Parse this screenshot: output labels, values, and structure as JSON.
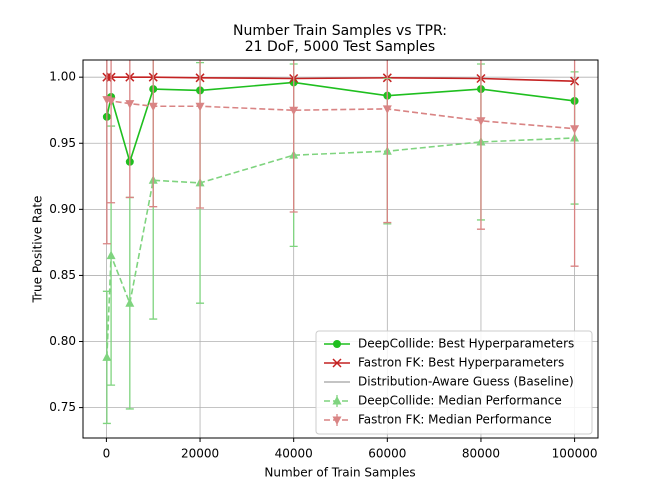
{
  "chart_data": {
    "type": "line",
    "title": [
      "Number Train Samples vs TPR:",
      "21 DoF, 5000 Test Samples"
    ],
    "xlabel": "Number of Train Samples",
    "ylabel": "True Positive Rate",
    "x": [
      100,
      1000,
      5000,
      10000,
      20000,
      40000,
      60000,
      80000,
      100000
    ],
    "xlim": [
      -5000,
      105000
    ],
    "xticks": [
      0,
      20000,
      40000,
      60000,
      80000,
      100000
    ],
    "ylim": [
      0.727,
      1.013
    ],
    "yticks": [
      {
        "value": 1.0,
        "label": "1.00"
      },
      {
        "value": 0.95,
        "label": "0.95"
      },
      {
        "value": 0.9,
        "label": "0.90"
      },
      {
        "value": 0.85,
        "label": "0.85"
      },
      {
        "value": 0.8,
        "label": "0.80"
      },
      {
        "value": 0.75,
        "label": "0.75"
      }
    ],
    "grid": true,
    "legend": "lower right",
    "series": [
      {
        "name": "DeepCollide: Best Hyperparameters",
        "color": "#1fbf1f",
        "marker": "circle",
        "linestyle": "solid",
        "values": [
          0.97,
          0.985,
          0.936,
          0.991,
          0.99,
          0.996,
          0.986,
          0.991,
          0.982
        ]
      },
      {
        "name": "Fastron FK: Best Hyperparameters",
        "color": "#c42222",
        "marker": "x",
        "linestyle": "solid",
        "values": [
          1.0,
          1.0,
          1.0,
          1.0,
          0.9995,
          0.999,
          0.9995,
          0.999,
          0.997
        ]
      },
      {
        "name": "Distribution-Aware Guess (Baseline)",
        "color": "#b0b0b0",
        "marker": "none",
        "linestyle": "solid",
        "values": [
          null,
          null,
          null,
          null,
          null,
          null,
          null,
          null,
          null
        ]
      },
      {
        "name": "DeepCollide: Median Performance",
        "color": "#7fd47f",
        "marker": "triangle-up",
        "linestyle": "dashed",
        "values": [
          0.788,
          0.865,
          0.829,
          0.922,
          0.92,
          0.941,
          0.944,
          0.951,
          0.954
        ],
        "errors": [
          0.05,
          0.098,
          0.08,
          0.105,
          0.091,
          0.069,
          0.055,
          0.059,
          0.05
        ]
      },
      {
        "name": "Fastron FK: Median Performance",
        "color": "#d98484",
        "marker": "triangle-down",
        "linestyle": "dashed",
        "values": [
          0.983,
          0.982,
          0.98,
          0.978,
          0.978,
          0.975,
          0.976,
          0.967,
          0.961
        ],
        "errors": [
          0.109,
          0.077,
          0.071,
          0.076,
          0.077,
          0.077,
          0.086,
          0.082,
          0.104
        ]
      }
    ]
  }
}
